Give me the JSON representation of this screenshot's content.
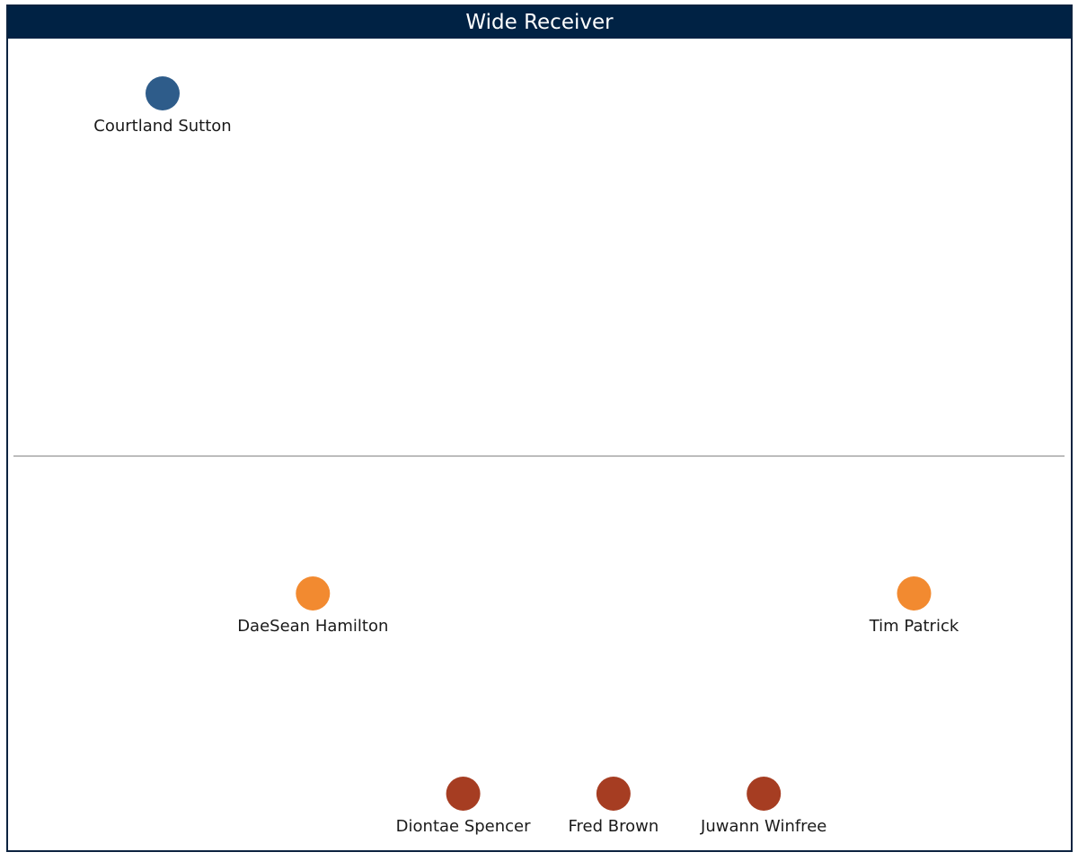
{
  "title": "Wide Receiver",
  "colors": {
    "title_bar": "#002244",
    "frame": "#0c2340",
    "divider": "#bdbdbd",
    "tier_1": "#2e5c8a",
    "tier_2": "#f28a30",
    "tier_3": "#a63d22"
  },
  "chart_data": {
    "type": "scatter",
    "title": "Wide Receiver",
    "xlabel": "",
    "ylabel": "",
    "grid": false,
    "legend": "none",
    "points": [
      {
        "label": "Courtland Sutton",
        "x": 1,
        "y": 3,
        "color": "#2e5c8a"
      },
      {
        "label": "DaeSean Hamilton",
        "x": 2,
        "y": 2,
        "color": "#f28a30"
      },
      {
        "label": "Tim Patrick",
        "x": 6,
        "y": 2,
        "color": "#f28a30"
      },
      {
        "label": "Diontae Spencer",
        "x": 3,
        "y": 1,
        "color": "#a63d22"
      },
      {
        "label": "Fred Brown",
        "x": 4,
        "y": 1,
        "color": "#a63d22"
      },
      {
        "label": "Juwann Winfree",
        "x": 5,
        "y": 1,
        "color": "#a63d22"
      }
    ]
  }
}
